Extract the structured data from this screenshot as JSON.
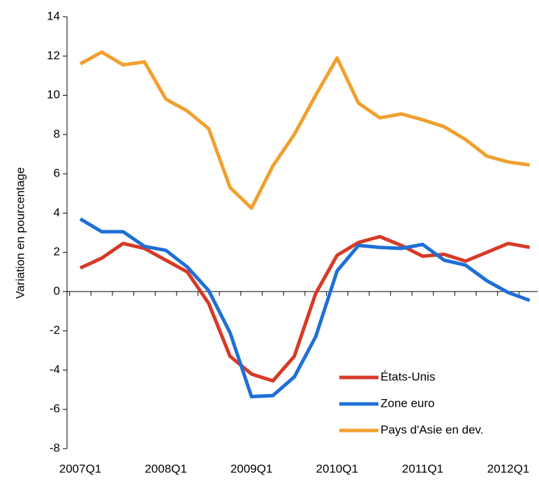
{
  "chart_data": {
    "type": "line",
    "y_label": "Variation en pourcentage",
    "categories": [
      "2007Q1",
      null,
      null,
      null,
      "2008Q1",
      null,
      null,
      null,
      "2009Q1",
      null,
      null,
      null,
      "2010Q1",
      null,
      null,
      null,
      "2011Q1",
      null,
      null,
      null,
      "2012Q1",
      null
    ],
    "series": [
      {
        "name": "États-Unis",
        "color": "#d63a26",
        "values": [
          1.2,
          1.7,
          2.45,
          2.2,
          1.6,
          1.0,
          -0.6,
          -3.3,
          -4.2,
          -4.55,
          -3.3,
          -0.1,
          1.85,
          2.5,
          2.8,
          2.35,
          1.8,
          1.9,
          1.55,
          2.0,
          2.45,
          2.25
        ]
      },
      {
        "name": "Zone euro",
        "color": "#1f6fd6",
        "values": [
          3.7,
          3.05,
          3.05,
          2.3,
          2.1,
          1.25,
          0.05,
          -2.1,
          -5.35,
          -5.3,
          -4.35,
          -2.3,
          1.05,
          2.35,
          2.25,
          2.2,
          2.4,
          1.6,
          1.35,
          0.55,
          -0.05,
          -0.45
        ]
      },
      {
        "name": "Pays d'Asie en dev.",
        "color": "#f0a030",
        "values": [
          11.6,
          12.2,
          11.55,
          11.7,
          9.8,
          9.2,
          8.3,
          5.3,
          4.25,
          6.4,
          8.0,
          10.0,
          11.9,
          9.6,
          8.85,
          9.05,
          8.75,
          8.4,
          7.75,
          6.9,
          6.6,
          6.45
        ]
      }
    ],
    "ylim": [
      -8,
      14
    ],
    "yticks": [
      -8,
      -6,
      -4,
      -2,
      0,
      2,
      4,
      6,
      8,
      10,
      12,
      14
    ],
    "legend": "lower-right",
    "grid": false
  }
}
